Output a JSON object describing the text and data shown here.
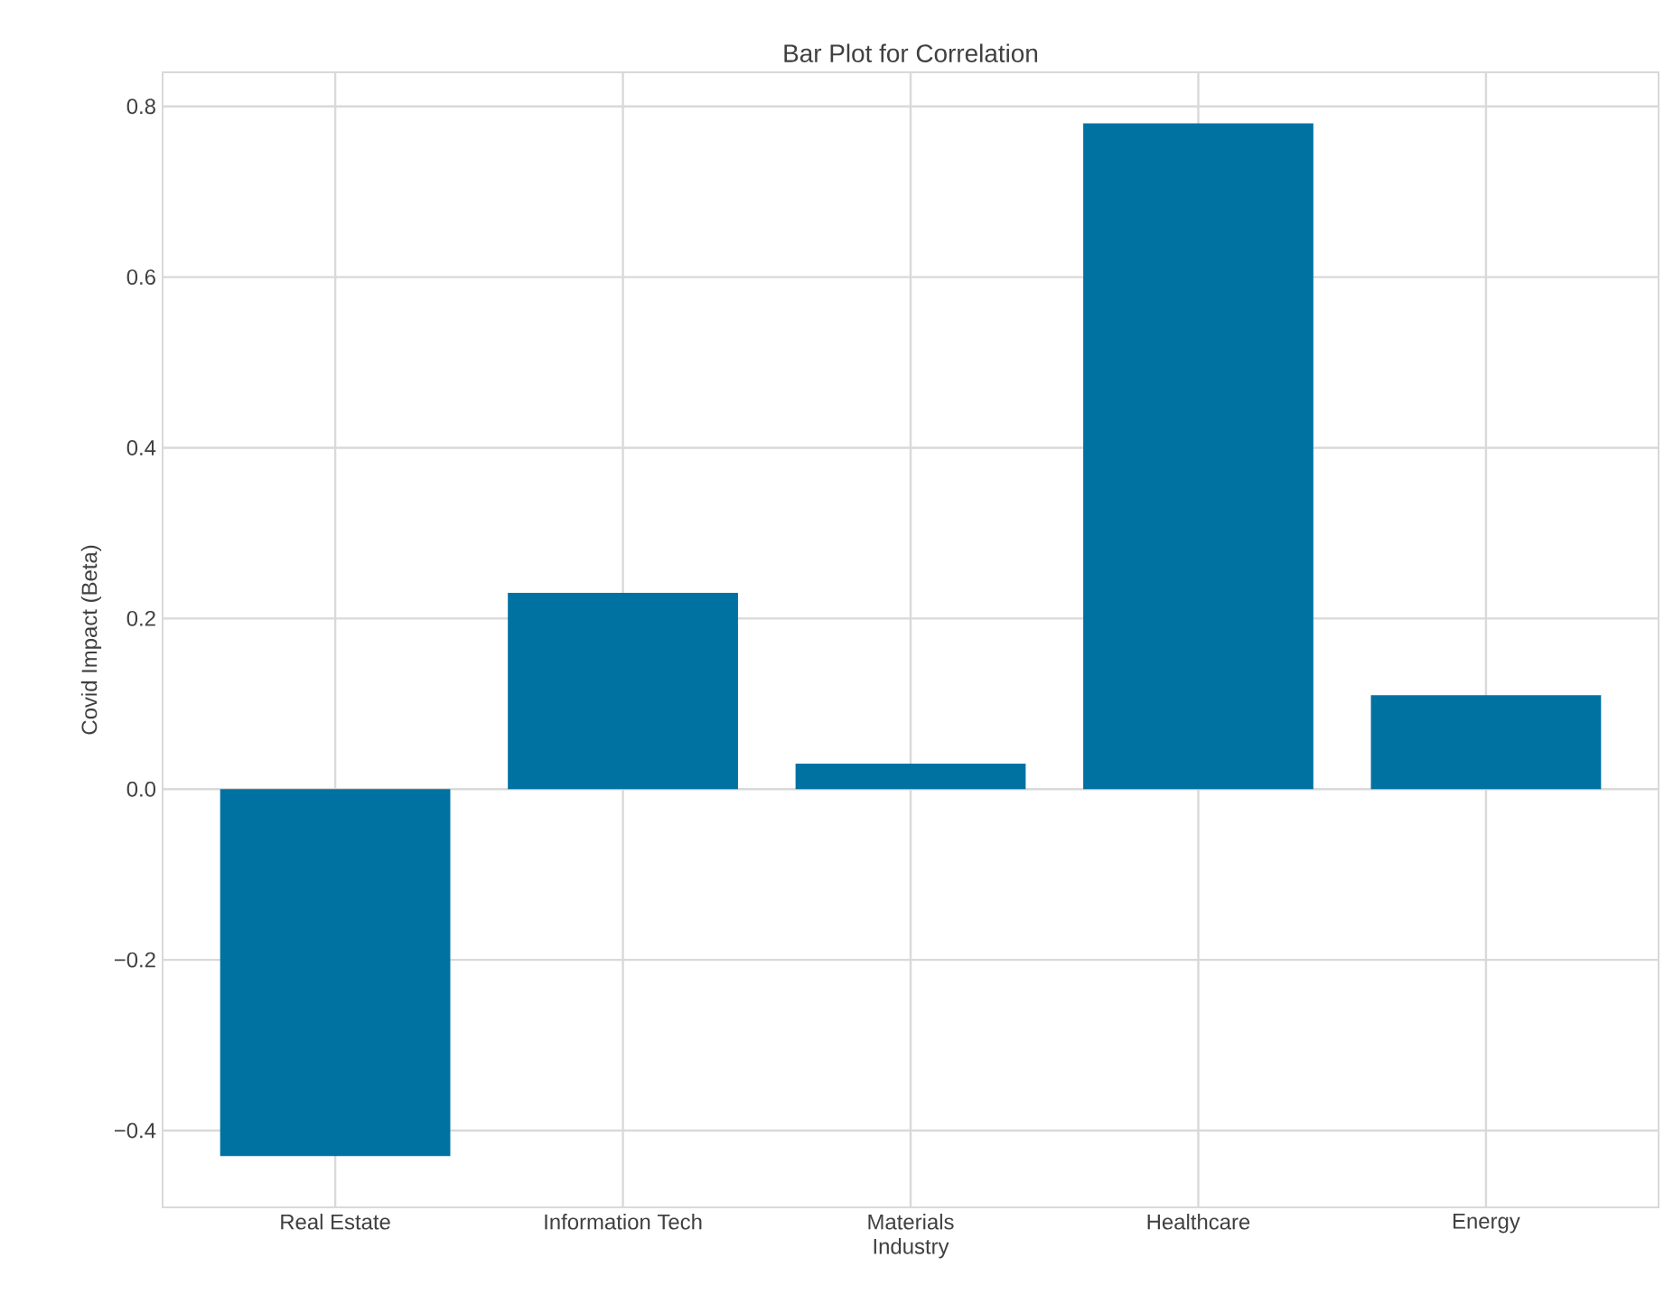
{
  "chart_data": {
    "type": "bar",
    "title": "Bar Plot for Correlation",
    "xlabel": "Industry",
    "ylabel": "Covid Impact (Beta)",
    "categories": [
      "Real Estate",
      "Information Tech",
      "Materials",
      "Healthcare",
      "Energy"
    ],
    "values": [
      -0.43,
      0.23,
      0.03,
      0.78,
      0.11
    ],
    "color": "#0072a2",
    "ylim": [
      -0.49,
      0.84
    ],
    "yticks": [
      {
        "value": -0.4,
        "label": "−0.4"
      },
      {
        "value": -0.2,
        "label": "−0.2"
      },
      {
        "value": 0,
        "label": "0.0"
      },
      {
        "value": 0.2,
        "label": "0.2"
      },
      {
        "value": 0.4,
        "label": "0.4"
      },
      {
        "value": 0.6,
        "label": "0.6"
      },
      {
        "value": 0.8,
        "label": "0.8"
      }
    ],
    "grid": true
  }
}
